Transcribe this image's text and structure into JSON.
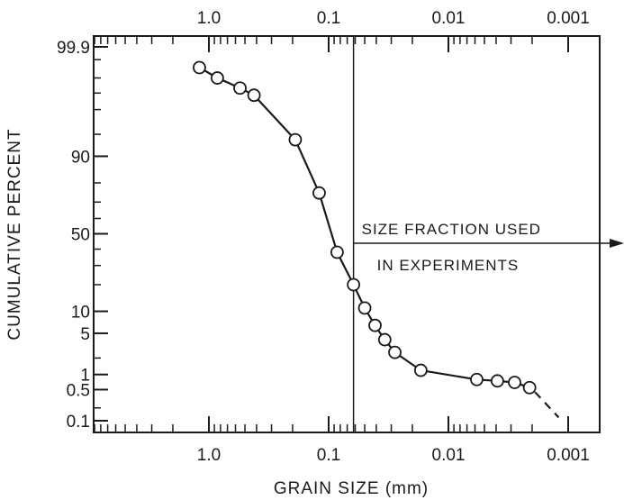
{
  "chart_data": {
    "type": "line",
    "title": "",
    "xlabel": "GRAIN SIZE (mm)",
    "ylabel": "CUMULATIVE PERCENT",
    "x_scale": "log",
    "x_direction": "decreasing",
    "xlim": [
      1.7,
      0.0012
    ],
    "x_ticks": [
      {
        "value": 1.0,
        "label": "1.0"
      },
      {
        "value": 0.1,
        "label": "0.1"
      },
      {
        "value": 0.01,
        "label": "0.01"
      },
      {
        "value": 0.001,
        "label": "0.001"
      }
    ],
    "y_scale": "probability",
    "ylim": [
      0.08,
      99.9
    ],
    "y_ticks": [
      {
        "value": 99.9,
        "label": "99.9"
      },
      {
        "value": 90,
        "label": "90"
      },
      {
        "value": 50,
        "label": "50"
      },
      {
        "value": 10,
        "label": "10"
      },
      {
        "value": 5,
        "label": "5"
      },
      {
        "value": 1,
        "label": "1"
      },
      {
        "value": 0.5,
        "label": "0.5"
      },
      {
        "value": 0.1,
        "label": "0.1"
      }
    ],
    "grid": false,
    "series": [
      {
        "name": "",
        "marker": "open-circle",
        "points": [
          {
            "x": 1.2,
            "y": 99.7
          },
          {
            "x": 0.85,
            "y": 99.5
          },
          {
            "x": 0.55,
            "y": 99.2
          },
          {
            "x": 0.42,
            "y": 98.9
          },
          {
            "x": 0.19,
            "y": 94
          },
          {
            "x": 0.12,
            "y": 75
          },
          {
            "x": 0.085,
            "y": 38
          },
          {
            "x": 0.062,
            "y": 20
          },
          {
            "x": 0.05,
            "y": 11
          },
          {
            "x": 0.041,
            "y": 6.5
          },
          {
            "x": 0.034,
            "y": 4
          },
          {
            "x": 0.028,
            "y": 2.5
          },
          {
            "x": 0.017,
            "y": 1.2
          },
          {
            "x": 0.0058,
            "y": 0.8
          },
          {
            "x": 0.0039,
            "y": 0.75
          },
          {
            "x": 0.0028,
            "y": 0.7
          },
          {
            "x": 0.0021,
            "y": 0.55
          }
        ],
        "extrapolated_to": {
          "x": 0.0012,
          "y": 0.12
        }
      }
    ],
    "annotations": [
      {
        "text_lines": [
          "SIZE FRACTION USED",
          "IN EXPERIMENTS"
        ],
        "x": 0.062
      }
    ]
  }
}
